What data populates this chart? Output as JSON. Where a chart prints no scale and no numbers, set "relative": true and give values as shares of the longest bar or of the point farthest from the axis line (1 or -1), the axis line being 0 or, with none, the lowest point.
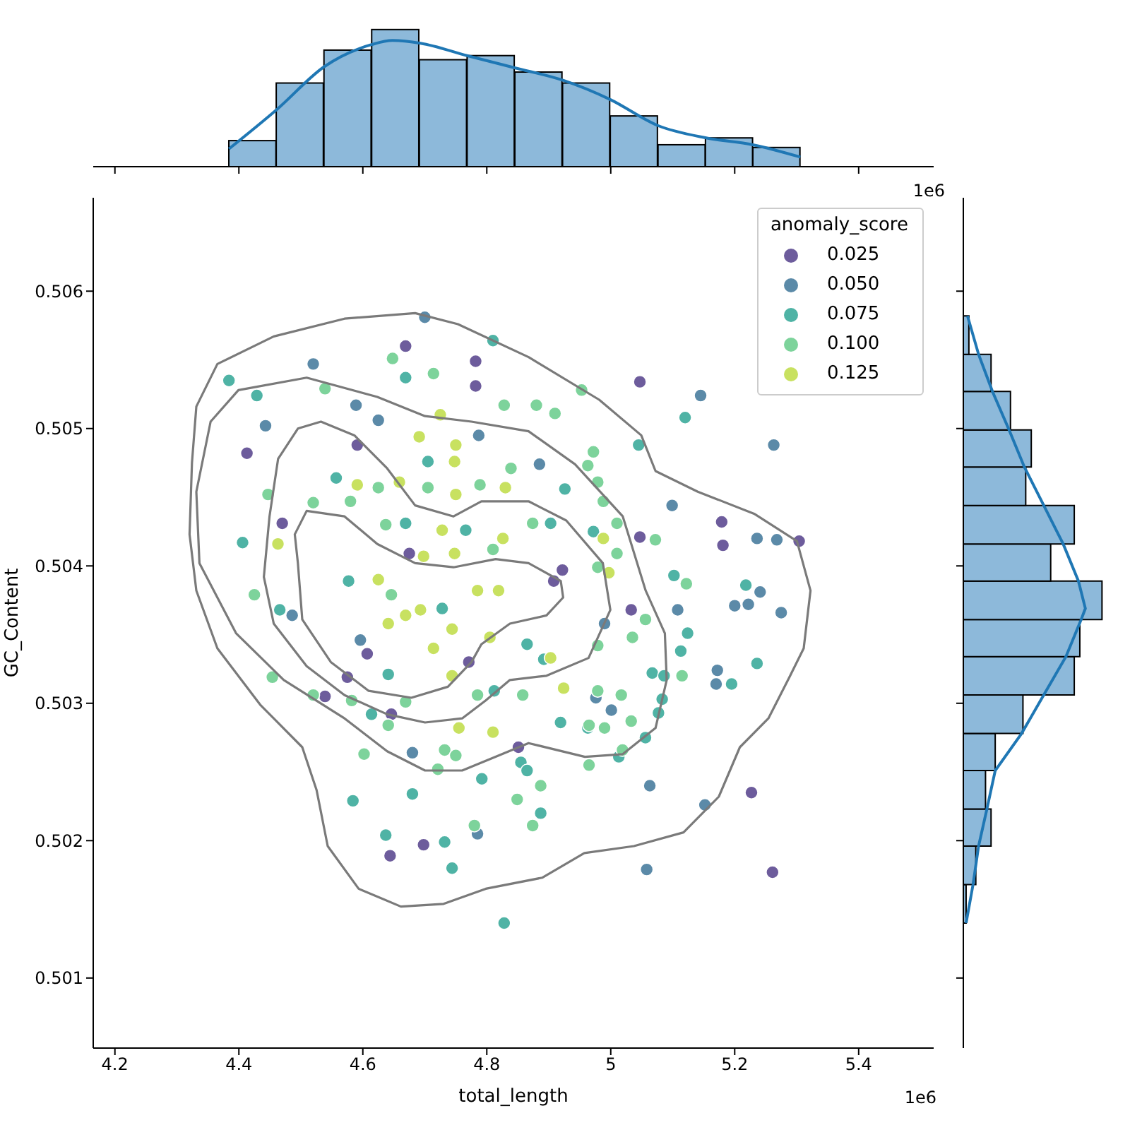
{
  "chart_data": [
    {
      "type": "histogram",
      "relative": true,
      "bins": [
        4.384,
        4.46,
        4.537,
        4.614,
        4.691,
        4.768,
        4.845,
        4.922,
        4.999,
        5.076,
        5.153,
        5.229,
        5.306
      ],
      "values": [
        0.19,
        0.61,
        0.85,
        1,
        0.78,
        0.81,
        0.69,
        0.61,
        0.37,
        0.16,
        0.21,
        0.14
      ],
      "color": "#8db9da",
      "xlim": [
        4.165,
        5.521
      ],
      "xticks": [
        4.2,
        4.4,
        4.6,
        4.8,
        5.0,
        5.2,
        5.4
      ],
      "tick_labels": false,
      "annotations": [
        "1e6"
      ],
      "series": [
        {
          "type": "line",
          "color": "#1f77b4",
          "x": [
            4.384,
            4.462,
            4.538,
            4.614,
            4.648,
            4.693,
            4.768,
            4.846,
            4.923,
            4.999,
            5.076,
            5.154,
            5.229,
            5.306
          ],
          "values": [
            0.13,
            0.42,
            0.73,
            0.89,
            0.92,
            0.9,
            0.81,
            0.72,
            0.63,
            0.49,
            0.3,
            0.21,
            0.16,
            0.07
          ]
        }
      ]
    },
    {
      "type": "scatter",
      "xlabel": "total_length",
      "ylabel": "GC_Content",
      "legend_title": "anomaly_score",
      "legend": "top right",
      "marker": "circle",
      "xlim": [
        4.165,
        5.521
      ],
      "ylim": [
        0.50049,
        0.50668
      ],
      "xticks": [
        4.2,
        4.4,
        4.6,
        4.8,
        5.0,
        5.2,
        5.4
      ],
      "yticks": [
        0.501,
        0.502,
        0.503,
        0.504,
        0.505,
        0.506
      ],
      "annotations": [
        "1e6"
      ],
      "series": [
        {
          "name": "0.025",
          "color": "#6d5c9c",
          "x": [
            4.669,
            4.782,
            4.782,
            4.413,
            4.591,
            4.47,
            4.675,
            4.922,
            4.908,
            5.047,
            5.179,
            5.181,
            5.304,
            5.047,
            5.033,
            5.227,
            5.261,
            4.539,
            4.646,
            4.607,
            4.575,
            4.698,
            4.644,
            4.851,
            4.771
          ],
          "values": [
            0.5056,
            0.50549,
            0.50531,
            0.50482,
            0.50488,
            0.50431,
            0.50409,
            0.50397,
            0.50389,
            0.50534,
            0.50432,
            0.50415,
            0.50418,
            0.50421,
            0.50368,
            0.50235,
            0.50177,
            0.50305,
            0.50292,
            0.50336,
            0.50319,
            0.50197,
            0.50189,
            0.50268,
            0.5033
          ]
        },
        {
          "name": "0.050",
          "color": "#5b8aa8",
          "x": [
            4.7,
            4.52,
            4.589,
            4.443,
            4.625,
            4.787,
            4.885,
            5.145,
            5.263,
            5.099,
            5.236,
            5.268,
            5.241,
            5.2,
            5.222,
            5.275,
            5.108,
            5.172,
            5.17,
            4.99,
            5.001,
            5.063,
            5.152,
            5.058,
            4.976,
            4.486,
            4.596,
            4.68,
            4.785
          ],
          "values": [
            0.50581,
            0.50547,
            0.50517,
            0.50502,
            0.50506,
            0.50495,
            0.50474,
            0.50524,
            0.50488,
            0.50444,
            0.5042,
            0.50419,
            0.50381,
            0.50371,
            0.50372,
            0.50366,
            0.50368,
            0.50324,
            0.50314,
            0.50358,
            0.50295,
            0.5024,
            0.50226,
            0.50179,
            0.50304,
            0.50364,
            0.50346,
            0.50264,
            0.50205
          ]
        },
        {
          "name": "0.075",
          "color": "#4fb3a5",
          "x": [
            4.81,
            4.384,
            4.669,
            4.429,
            4.705,
            4.926,
            4.557,
            4.669,
            4.766,
            4.903,
            4.406,
            5.12,
            5.045,
            4.972,
            5.102,
            5.218,
            5.124,
            5.113,
            5.067,
            5.086,
            5.195,
            5.236,
            5.083,
            5.077,
            5.056,
            4.963,
            4.919,
            5.013,
            4.887,
            4.466,
            4.614,
            4.641,
            4.792,
            4.584,
            4.68,
            4.637,
            4.732,
            4.744,
            4.855,
            4.865,
            4.828,
            4.728,
            4.865,
            4.812,
            4.577,
            4.892
          ],
          "values": [
            0.50564,
            0.50535,
            0.50537,
            0.50524,
            0.50476,
            0.50456,
            0.50464,
            0.50431,
            0.50426,
            0.50431,
            0.50417,
            0.50508,
            0.50488,
            0.50425,
            0.50393,
            0.50386,
            0.50351,
            0.50338,
            0.50322,
            0.5032,
            0.50314,
            0.50329,
            0.50303,
            0.50293,
            0.50275,
            0.50282,
            0.50286,
            0.50261,
            0.5022,
            0.50368,
            0.50292,
            0.50321,
            0.50245,
            0.50229,
            0.50234,
            0.50204,
            0.50199,
            0.5018,
            0.50257,
            0.50251,
            0.5014,
            0.50369,
            0.50343,
            0.50309,
            0.50389,
            0.50332
          ]
        },
        {
          "name": "0.100",
          "color": "#7dd39b",
          "x": [
            4.648,
            4.714,
            4.953,
            4.539,
            4.828,
            4.88,
            4.91,
            4.839,
            4.625,
            4.705,
            4.789,
            4.447,
            4.52,
            4.58,
            4.637,
            4.874,
            4.81,
            4.979,
            4.972,
            5.01,
            4.963,
            5.072,
            4.988,
            5.01,
            4.979,
            5.122,
            5.115,
            5.056,
            5.035,
            4.979,
            5.033,
            5.017,
            4.99,
            5.019,
            4.965,
            4.887,
            4.425,
            4.454,
            4.52,
            4.582,
            4.641,
            4.669,
            4.646,
            4.602,
            4.732,
            4.75,
            4.721,
            4.78,
            4.849,
            4.874,
            4.965,
            4.979,
            4.785,
            4.858
          ],
          "values": [
            0.50551,
            0.5054,
            0.50528,
            0.50529,
            0.50517,
            0.50517,
            0.50511,
            0.50471,
            0.50457,
            0.50457,
            0.50459,
            0.50452,
            0.50446,
            0.50447,
            0.5043,
            0.50431,
            0.50412,
            0.50461,
            0.50483,
            0.50431,
            0.50473,
            0.50419,
            0.50447,
            0.50409,
            0.50399,
            0.50387,
            0.5032,
            0.50361,
            0.50348,
            0.50342,
            0.50287,
            0.50306,
            0.50282,
            0.50266,
            0.50255,
            0.5024,
            0.50379,
            0.50319,
            0.50306,
            0.50302,
            0.50284,
            0.50301,
            0.50379,
            0.50263,
            0.50266,
            0.50262,
            0.50252,
            0.50211,
            0.5023,
            0.50211,
            0.50284,
            0.50309,
            0.50306,
            0.50306
          ]
        },
        {
          "name": "0.125",
          "color": "#c8e160",
          "x": [
            4.691,
            4.75,
            4.725,
            4.748,
            4.591,
            4.659,
            4.75,
            4.83,
            4.728,
            4.826,
            4.988,
            4.698,
            4.748,
            4.463,
            4.625,
            4.997,
            4.924,
            4.903,
            4.81,
            4.755,
            4.641,
            4.669,
            4.693,
            4.785,
            4.819,
            4.744,
            4.714,
            4.744,
            4.805
          ],
          "values": [
            0.50494,
            0.50488,
            0.5051,
            0.50476,
            0.50459,
            0.50461,
            0.50452,
            0.50457,
            0.50426,
            0.5042,
            0.5042,
            0.50407,
            0.50409,
            0.50416,
            0.5039,
            0.50395,
            0.50311,
            0.50333,
            0.50279,
            0.50282,
            0.50358,
            0.50364,
            0.50368,
            0.50382,
            0.50382,
            0.50354,
            0.5034,
            0.5032,
            0.50348
          ]
        }
      ]
    },
    {
      "type": "histogram",
      "orientation": "horizontal",
      "relative": true,
      "bins": [
        0.5014,
        0.50168,
        0.50196,
        0.50223,
        0.50251,
        0.50278,
        0.50306,
        0.50334,
        0.50361,
        0.50389,
        0.50416,
        0.50444,
        0.50472,
        0.50499,
        0.50527,
        0.50554,
        0.50582
      ],
      "values": [
        0.02,
        0.09,
        0.2,
        0.16,
        0.23,
        0.43,
        0.8,
        0.84,
        1,
        0.63,
        0.8,
        0.45,
        0.49,
        0.34,
        0.2,
        0.04
      ],
      "color": "#8db9da",
      "ylim": [
        0.50049,
        0.50668
      ],
      "yticks": [
        0.501,
        0.502,
        0.503,
        0.504,
        0.505,
        0.506
      ],
      "tick_labels": false,
      "series": [
        {
          "type": "line",
          "color": "#1f77b4",
          "x": [
            0.5014,
            0.50168,
            0.50196,
            0.50223,
            0.50251,
            0.50278,
            0.50306,
            0.50334,
            0.50361,
            0.50369,
            0.50389,
            0.50416,
            0.50444,
            0.50472,
            0.50499,
            0.50527,
            0.50554,
            0.50582
          ],
          "values": [
            0.02,
            0.07,
            0.11,
            0.17,
            0.23,
            0.42,
            0.58,
            0.74,
            0.85,
            0.88,
            0.83,
            0.72,
            0.58,
            0.44,
            0.33,
            0.21,
            0.11,
            0.03
          ]
        }
      ]
    }
  ]
}
